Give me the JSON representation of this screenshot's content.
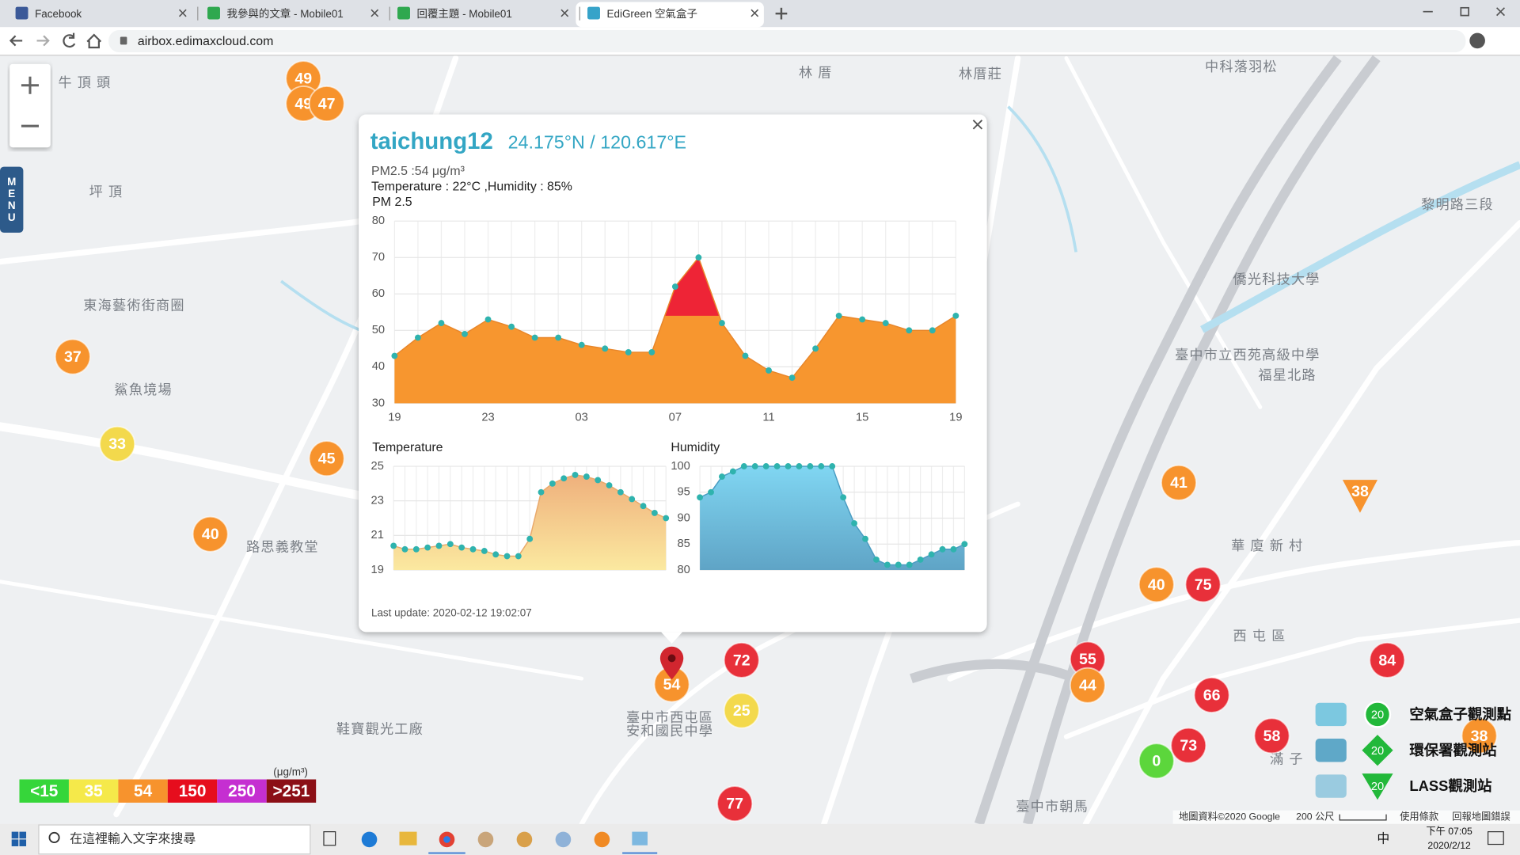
{
  "browser": {
    "tabs": [
      "Facebook",
      "我參與的文章 - Mobile01",
      "回覆主題 - Mobile01",
      "EdiGreen 空氣盒子"
    ],
    "url": "airbox.edimaxcloud.com"
  },
  "map": {
    "menu": "MENU",
    "places": [
      "牛 頂 頭",
      "坪 頂",
      "林 厝",
      "林厝莊",
      "中科落羽松",
      "東海藝術街商圈",
      "鯊魚境場",
      "路思義教堂",
      "華 廈 新 村",
      "西 屯 區",
      "僑光科技大學",
      "臺中市立西苑高級中學",
      "福星北路",
      "鞋寶觀光工廠",
      "臺中市西屯區",
      "安和國民中學",
      "黎明路三段",
      "臺中市朝馬",
      "滿 子"
    ],
    "markers": [
      {
        "value": 49,
        "color": "#f7932d"
      },
      {
        "value": 49,
        "color": "#f7932d"
      },
      {
        "value": 47,
        "color": "#f7932d"
      },
      {
        "value": 37,
        "color": "#f7932d"
      },
      {
        "value": 33,
        "color": "#f3d94c"
      },
      {
        "value": 45,
        "color": "#f7932d"
      },
      {
        "value": 40,
        "color": "#f7932d"
      },
      {
        "value": 72,
        "color": "#e8303a"
      },
      {
        "value": 54,
        "color": "#f7932d"
      },
      {
        "value": 25,
        "color": "#f3d94c"
      },
      {
        "value": 77,
        "color": "#e8303a"
      },
      {
        "value": 55,
        "color": "#e8303a"
      },
      {
        "value": 44,
        "color": "#f7932d"
      },
      {
        "value": 41,
        "color": "#f7932d"
      },
      {
        "value": 40,
        "color": "#f7932d"
      },
      {
        "value": 75,
        "color": "#e8303a"
      },
      {
        "value": 66,
        "color": "#e8303a"
      },
      {
        "value": 73,
        "color": "#e8303a"
      },
      {
        "value": 58,
        "color": "#e8303a"
      },
      {
        "value": 0,
        "color": "#5cd63c"
      },
      {
        "value": 84,
        "color": "#e8303a"
      },
      {
        "value": 38,
        "color": "#f7932d"
      },
      {
        "value": 38,
        "color": "#f7932d"
      }
    ],
    "attribution": "地圖資料©2020 Google",
    "scale": "200 公尺",
    "terms": "使用條款",
    "report": "回報地圖錯誤"
  },
  "popup": {
    "station": "taichung12",
    "coords": "24.175°N / 120.617°E",
    "lines": [
      "PM2.5 :54 μg/m³",
      "Temperature : 22°C ,Humidity : 85%"
    ],
    "pm_chart": {
      "title": "PM 2.5",
      "color": "#f7962f",
      "peak_color": "#ee2436",
      "ylim": [
        30,
        80
      ],
      "yticks": [
        30,
        40,
        50,
        60,
        70,
        80
      ],
      "categories": [
        "19",
        null,
        null,
        null,
        "23",
        null,
        null,
        null,
        "03",
        null,
        null,
        null,
        "07",
        null,
        null,
        null,
        "11",
        null,
        null,
        null,
        "15",
        null,
        null,
        null,
        "19"
      ],
      "values": [
        43,
        48,
        52,
        49,
        53,
        51,
        48,
        48,
        46,
        45,
        44,
        44,
        62,
        70,
        52,
        43,
        39,
        37,
        45,
        54,
        53,
        52,
        50,
        50,
        54
      ]
    },
    "temperature_chart": {
      "title": "Temperature",
      "color": "#f2b67e",
      "ylim": [
        19,
        25
      ],
      "yticks": [
        19,
        21,
        23,
        25
      ],
      "values": [
        20.4,
        20.2,
        20.2,
        20.3,
        20.4,
        20.5,
        20.3,
        20.2,
        20.1,
        19.9,
        19.8,
        19.8,
        20.8,
        23.5,
        24.0,
        24.3,
        24.5,
        24.4,
        24.2,
        23.9,
        23.5,
        23.1,
        22.7,
        22.3,
        22.0
      ]
    },
    "humidity_chart": {
      "title": "Humidity",
      "color": "#72c8e6",
      "ylim": [
        80,
        100
      ],
      "yticks": [
        80,
        85,
        90,
        95,
        100
      ],
      "values": [
        94,
        95,
        98,
        99,
        100,
        100,
        100,
        100,
        100,
        100,
        100,
        100,
        100,
        94,
        89,
        86,
        82,
        81,
        81,
        81,
        82,
        83,
        84,
        84,
        85
      ]
    },
    "last_update": "Last update: 2020-02-12 19:02:07"
  },
  "legend": {
    "unit": "(μg/m³)",
    "levels": [
      {
        "label": "<15",
        "color": "#36d63a"
      },
      {
        "value": 35,
        "color": "#f5e94a"
      },
      {
        "value": 54,
        "color": "#f7932d"
      },
      {
        "value": 150,
        "color": "#e60d1d"
      },
      {
        "value": 250,
        "color": "#c52fd1"
      },
      {
        "label": ">251",
        "color": "#8b0f16"
      }
    ],
    "stations": [
      {
        "label": "空氣盒子觀測點",
        "icon": 20
      },
      {
        "label": "環保署觀測站",
        "icon": 20
      },
      {
        "label": "LASS觀測站",
        "icon": 20
      }
    ]
  },
  "taskbar": {
    "search": "在這裡輸入文字來搜尋",
    "ime": "中",
    "time": "下午 07:05",
    "date": "2020/2/12"
  }
}
